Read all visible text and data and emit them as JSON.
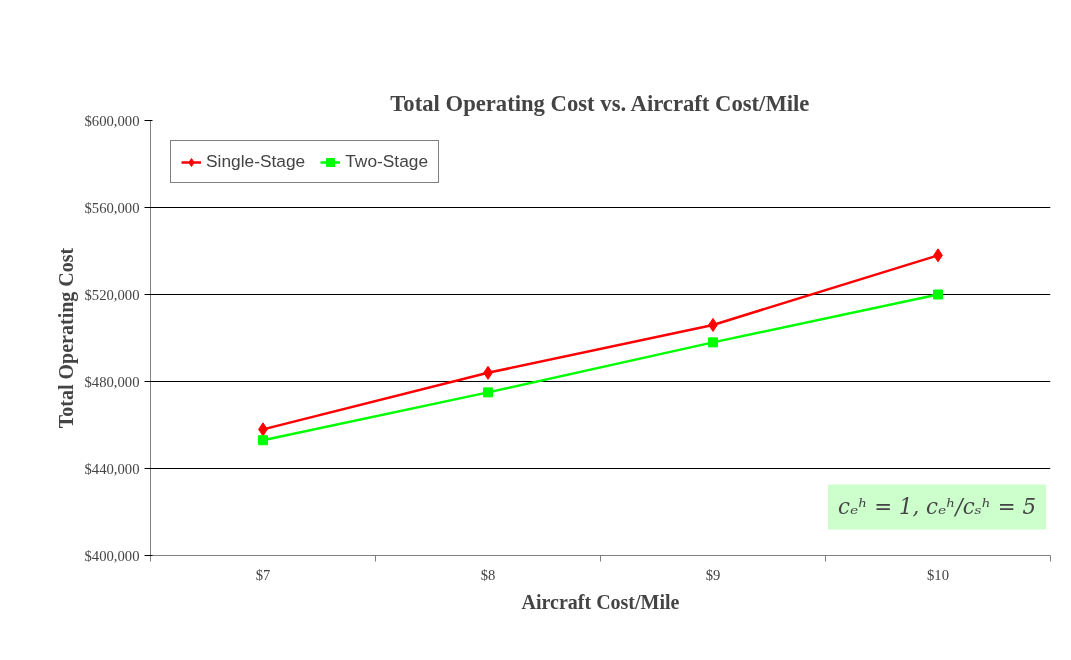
{
  "chart_data": {
    "type": "line",
    "title": "Total Operating Cost vs. Aircraft Cost/Mile",
    "xlabel": "Aircraft Cost/Mile",
    "ylabel": "Total Operating Cost",
    "categories": [
      "$7",
      "$8",
      "$9",
      "$10"
    ],
    "series": [
      {
        "name": "Single-Stage",
        "color": "#ff0000",
        "marker": "diamond",
        "values": [
          458000,
          484000,
          506000,
          538000
        ]
      },
      {
        "name": "Two-Stage",
        "color": "#00ff00",
        "marker": "square",
        "values": [
          453000,
          475000,
          498000,
          520000
        ]
      }
    ],
    "ylim": [
      400000,
      600000
    ],
    "yticks": [
      {
        "value": 400000,
        "label": "$400,000"
      },
      {
        "value": 440000,
        "label": "$440,000"
      },
      {
        "value": 480000,
        "label": "$480,000"
      },
      {
        "value": 520000,
        "label": "$520,000"
      },
      {
        "value": 560000,
        "label": "$560,000"
      },
      {
        "value": 600000,
        "label": "$600,000"
      }
    ],
    "grid": "y",
    "legend": "top left",
    "line_style": "solid",
    "annotations": [
      "cₑʰ = 1, cₑʰ/cₛʰ = 5"
    ]
  }
}
